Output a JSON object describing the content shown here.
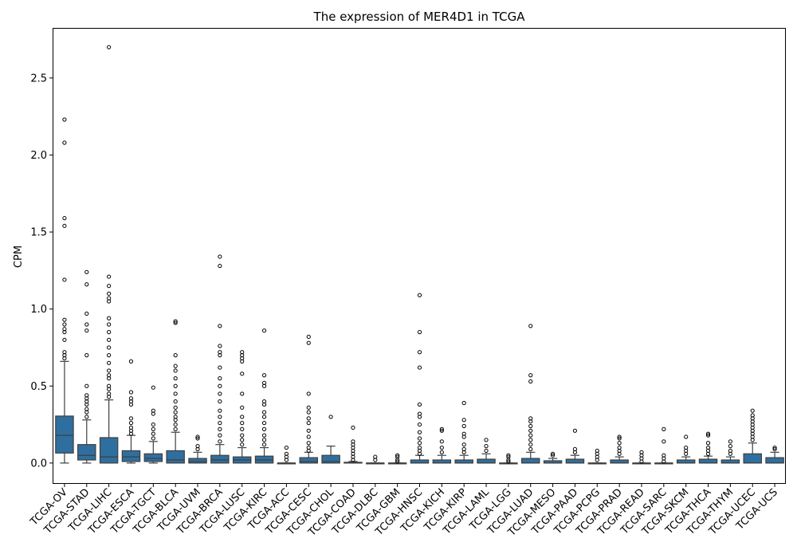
{
  "chart_data": {
    "type": "box",
    "title": "The expression of MER4D1 in TCGA",
    "xlabel": "",
    "ylabel": "CPM",
    "ylim": [
      -0.13,
      2.82
    ],
    "yticks": [
      0.0,
      0.5,
      1.0,
      1.5,
      2.0,
      2.5
    ],
    "ytick_labels": [
      "0.0",
      "0.5",
      "1.0",
      "1.5",
      "2.0",
      "2.5"
    ],
    "box_color": "#2f6f9f",
    "grid": false,
    "legend": false,
    "categories": [
      "TCGA-OV",
      "TCGA-STAD",
      "TCGA-LIHC",
      "TCGA-ESCA",
      "TCGA-TGCT",
      "TCGA-BLCA",
      "TCGA-UVM",
      "TCGA-BRCA",
      "TCGA-LUSC",
      "TCGA-KIRC",
      "TCGA-ACC",
      "TCGA-CESC",
      "TCGA-CHOL",
      "TCGA-COAD",
      "TCGA-DLBC",
      "TCGA-GBM",
      "TCGA-HNSC",
      "TCGA-KICH",
      "TCGA-KIRP",
      "TCGA-LAML",
      "TCGA-LGG",
      "TCGA-LUAD",
      "TCGA-MESO",
      "TCGA-PAAD",
      "TCGA-PCPG",
      "TCGA-PRAD",
      "TCGA-READ",
      "TCGA-SARC",
      "TCGA-SKCM",
      "TCGA-THCA",
      "TCGA-THYM",
      "TCGA-UCEC",
      "TCGA-UCS"
    ],
    "boxes": [
      {
        "whislo": 0.0,
        "q1": 0.065,
        "med": 0.18,
        "q3": 0.305,
        "whishi": 0.66,
        "fliers": [
          0.68,
          0.7,
          0.72,
          0.8,
          0.85,
          0.87,
          0.9,
          0.93,
          1.19,
          1.54,
          1.59,
          2.08,
          2.23
        ]
      },
      {
        "whislo": 0.0,
        "q1": 0.02,
        "med": 0.05,
        "q3": 0.12,
        "whishi": 0.28,
        "fliers": [
          0.3,
          0.33,
          0.35,
          0.38,
          0.4,
          0.42,
          0.44,
          0.5,
          0.7,
          0.86,
          0.9,
          0.97,
          1.16,
          1.24
        ]
      },
      {
        "whislo": 0.0,
        "q1": 0.0,
        "med": 0.04,
        "q3": 0.165,
        "whishi": 0.41,
        "fliers": [
          0.43,
          0.45,
          0.48,
          0.5,
          0.55,
          0.57,
          0.6,
          0.65,
          0.7,
          0.75,
          0.8,
          0.85,
          0.9,
          0.94,
          1.05,
          1.07,
          1.1,
          1.15,
          1.21,
          2.7
        ]
      },
      {
        "whislo": 0.0,
        "q1": 0.01,
        "med": 0.04,
        "q3": 0.08,
        "whishi": 0.18,
        "fliers": [
          0.19,
          0.21,
          0.23,
          0.26,
          0.29,
          0.38,
          0.4,
          0.42,
          0.46,
          0.66
        ]
      },
      {
        "whislo": 0.0,
        "q1": 0.01,
        "med": 0.03,
        "q3": 0.06,
        "whishi": 0.14,
        "fliers": [
          0.16,
          0.19,
          0.22,
          0.25,
          0.32,
          0.34,
          0.49
        ]
      },
      {
        "whislo": 0.0,
        "q1": 0.0,
        "med": 0.02,
        "q3": 0.08,
        "whishi": 0.2,
        "fliers": [
          0.22,
          0.25,
          0.28,
          0.3,
          0.33,
          0.36,
          0.4,
          0.45,
          0.5,
          0.55,
          0.6,
          0.63,
          0.7,
          0.91,
          0.92
        ]
      },
      {
        "whislo": 0.0,
        "q1": 0.0,
        "med": 0.01,
        "q3": 0.03,
        "whishi": 0.07,
        "fliers": [
          0.09,
          0.11,
          0.16,
          0.17
        ]
      },
      {
        "whislo": 0.0,
        "q1": 0.0,
        "med": 0.02,
        "q3": 0.05,
        "whishi": 0.12,
        "fliers": [
          0.14,
          0.18,
          0.22,
          0.26,
          0.3,
          0.34,
          0.4,
          0.45,
          0.5,
          0.55,
          0.62,
          0.7,
          0.72,
          0.76,
          0.89,
          1.28,
          1.34
        ]
      },
      {
        "whislo": 0.0,
        "q1": 0.0,
        "med": 0.02,
        "q3": 0.04,
        "whishi": 0.1,
        "fliers": [
          0.12,
          0.15,
          0.18,
          0.22,
          0.26,
          0.3,
          0.36,
          0.45,
          0.58,
          0.66,
          0.68,
          0.7,
          0.72
        ]
      },
      {
        "whislo": 0.0,
        "q1": 0.0,
        "med": 0.02,
        "q3": 0.045,
        "whishi": 0.1,
        "fliers": [
          0.12,
          0.15,
          0.18,
          0.22,
          0.26,
          0.3,
          0.33,
          0.38,
          0.4,
          0.5,
          0.52,
          0.57,
          0.86
        ]
      },
      {
        "whislo": 0.0,
        "q1": 0.0,
        "med": 0.0,
        "q3": 0.0,
        "whishi": 0.0,
        "fliers": [
          0.02,
          0.04,
          0.06,
          0.1
        ]
      },
      {
        "whislo": 0.0,
        "q1": 0.0,
        "med": 0.01,
        "q3": 0.035,
        "whishi": 0.07,
        "fliers": [
          0.08,
          0.1,
          0.13,
          0.17,
          0.21,
          0.26,
          0.29,
          0.33,
          0.36,
          0.45,
          0.78,
          0.82
        ]
      },
      {
        "whislo": 0.0,
        "q1": 0.0,
        "med": 0.01,
        "q3": 0.05,
        "whishi": 0.11,
        "fliers": [
          0.3
        ]
      },
      {
        "whislo": 0.0,
        "q1": 0.0,
        "med": 0.0,
        "q3": 0.005,
        "whishi": 0.01,
        "fliers": [
          0.02,
          0.04,
          0.06,
          0.08,
          0.1,
          0.12,
          0.14,
          0.23
        ]
      },
      {
        "whislo": 0.0,
        "q1": 0.0,
        "med": 0.0,
        "q3": 0.0,
        "whishi": 0.0,
        "fliers": [
          0.02,
          0.04
        ]
      },
      {
        "whislo": 0.0,
        "q1": 0.0,
        "med": 0.0,
        "q3": 0.0,
        "whishi": 0.0,
        "fliers": [
          0.01,
          0.02,
          0.04,
          0.05
        ]
      },
      {
        "whislo": 0.0,
        "q1": 0.0,
        "med": 0.0,
        "q3": 0.02,
        "whishi": 0.05,
        "fliers": [
          0.06,
          0.08,
          0.1,
          0.13,
          0.16,
          0.2,
          0.25,
          0.3,
          0.32,
          0.38,
          0.62,
          0.72,
          0.85,
          1.09
        ]
      },
      {
        "whislo": 0.0,
        "q1": 0.0,
        "med": 0.0,
        "q3": 0.02,
        "whishi": 0.05,
        "fliers": [
          0.07,
          0.1,
          0.14,
          0.21,
          0.22
        ]
      },
      {
        "whislo": 0.0,
        "q1": 0.0,
        "med": 0.0,
        "q3": 0.02,
        "whishi": 0.05,
        "fliers": [
          0.07,
          0.09,
          0.12,
          0.17,
          0.19,
          0.24,
          0.28,
          0.39
        ]
      },
      {
        "whislo": 0.0,
        "q1": 0.0,
        "med": 0.0,
        "q3": 0.025,
        "whishi": 0.06,
        "fliers": [
          0.08,
          0.11,
          0.15
        ]
      },
      {
        "whislo": 0.0,
        "q1": 0.0,
        "med": 0.0,
        "q3": 0.0,
        "whishi": 0.0,
        "fliers": [
          0.01,
          0.02,
          0.04,
          0.05
        ]
      },
      {
        "whislo": 0.0,
        "q1": 0.0,
        "med": 0.0,
        "q3": 0.03,
        "whishi": 0.07,
        "fliers": [
          0.09,
          0.12,
          0.15,
          0.18,
          0.21,
          0.24,
          0.27,
          0.29,
          0.53,
          0.57,
          0.89
        ]
      },
      {
        "whislo": 0.0,
        "q1": 0.0,
        "med": 0.0,
        "q3": 0.015,
        "whishi": 0.03,
        "fliers": [
          0.05,
          0.06
        ]
      },
      {
        "whislo": 0.0,
        "q1": 0.0,
        "med": 0.0,
        "q3": 0.025,
        "whishi": 0.05,
        "fliers": [
          0.07,
          0.09,
          0.21
        ]
      },
      {
        "whislo": 0.0,
        "q1": 0.0,
        "med": 0.0,
        "q3": 0.0,
        "whishi": 0.0,
        "fliers": [
          0.02,
          0.04,
          0.06,
          0.08
        ]
      },
      {
        "whislo": 0.0,
        "q1": 0.0,
        "med": 0.0,
        "q3": 0.02,
        "whishi": 0.04,
        "fliers": [
          0.06,
          0.08,
          0.1,
          0.13,
          0.16,
          0.17
        ]
      },
      {
        "whislo": 0.0,
        "q1": 0.0,
        "med": 0.0,
        "q3": 0.0,
        "whishi": 0.0,
        "fliers": [
          0.01,
          0.03,
          0.05,
          0.07
        ]
      },
      {
        "whislo": 0.0,
        "q1": 0.0,
        "med": 0.0,
        "q3": 0.0,
        "whishi": 0.0,
        "fliers": [
          0.01,
          0.03,
          0.05,
          0.14,
          0.22
        ]
      },
      {
        "whislo": 0.0,
        "q1": 0.0,
        "med": 0.0,
        "q3": 0.02,
        "whishi": 0.04,
        "fliers": [
          0.06,
          0.08,
          0.1,
          0.17
        ]
      },
      {
        "whislo": 0.0,
        "q1": 0.0,
        "med": 0.0,
        "q3": 0.025,
        "whishi": 0.045,
        "fliers": [
          0.06,
          0.08,
          0.1,
          0.13,
          0.18,
          0.19
        ]
      },
      {
        "whislo": 0.0,
        "q1": 0.0,
        "med": 0.0,
        "q3": 0.02,
        "whishi": 0.04,
        "fliers": [
          0.06,
          0.08,
          0.11,
          0.14
        ]
      },
      {
        "whislo": 0.0,
        "q1": 0.0,
        "med": 0.0,
        "q3": 0.06,
        "whishi": 0.13,
        "fliers": [
          0.15,
          0.17,
          0.19,
          0.21,
          0.23,
          0.25,
          0.27,
          0.29,
          0.31,
          0.34
        ]
      },
      {
        "whislo": 0.0,
        "q1": 0.0,
        "med": 0.0,
        "q3": 0.035,
        "whishi": 0.07,
        "fliers": [
          0.09,
          0.1
        ]
      }
    ]
  }
}
